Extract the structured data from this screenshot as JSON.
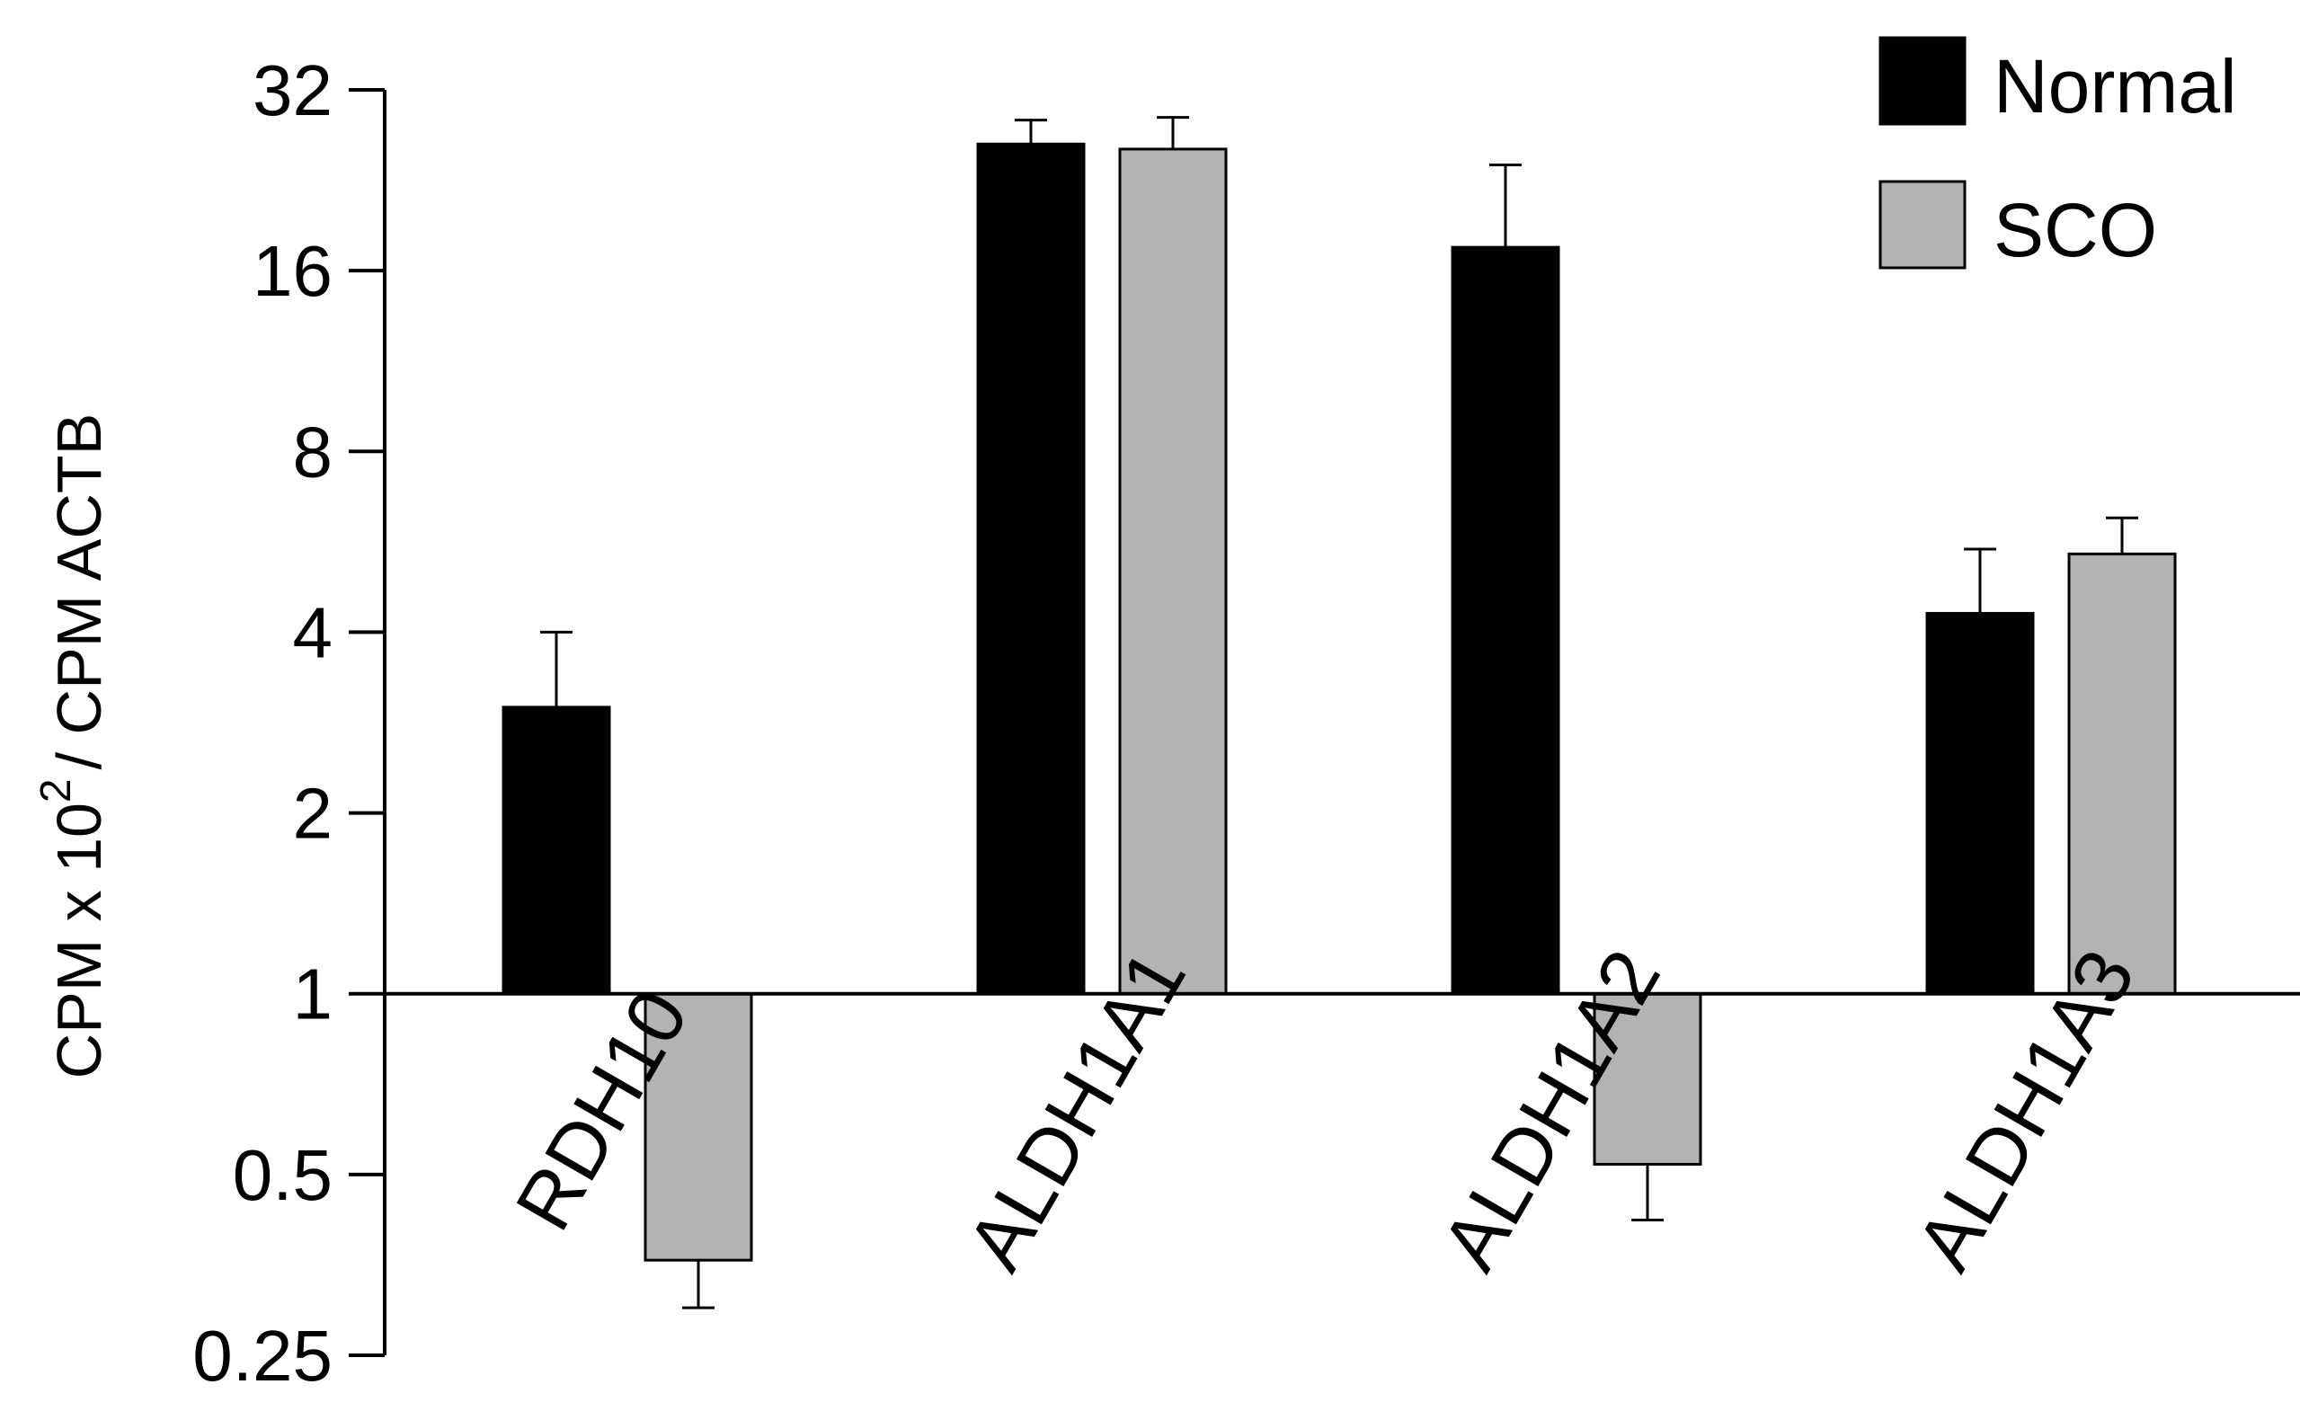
{
  "chart_data": {
    "type": "bar",
    "title": "",
    "xlabel": "",
    "ylabel": {
      "prefix": "CPM x 10",
      "superscript": "2",
      "suffix": "/ CPM ACTB"
    },
    "y_scale": "log2",
    "ylim": [
      0.25,
      32
    ],
    "baseline": 1,
    "y_ticks": [
      0.25,
      0.5,
      1,
      2,
      4,
      8,
      16,
      32
    ],
    "y_tick_labels": [
      "0.25",
      "0.5",
      "1",
      "2",
      "4",
      "8",
      "16",
      "32"
    ],
    "categories": [
      "RDH10",
      "ALDH1A1",
      "ALDH1A2",
      "ALDH1A3"
    ],
    "series": [
      {
        "name": "Normal",
        "color": "#000000",
        "values": [
          3.0,
          26.0,
          17.5,
          4.3
        ],
        "error_upper": [
          4.0,
          28.5,
          24.0,
          5.5
        ]
      },
      {
        "name": "SCO",
        "color": "#b3b3b3",
        "values": [
          0.36,
          25.5,
          0.52,
          5.4
        ],
        "error_lower": [
          0.3,
          28.8,
          0.42,
          6.2
        ]
      }
    ],
    "legend": {
      "position": "top-right",
      "entries": [
        "Normal",
        "SCO"
      ]
    },
    "grid": false
  }
}
